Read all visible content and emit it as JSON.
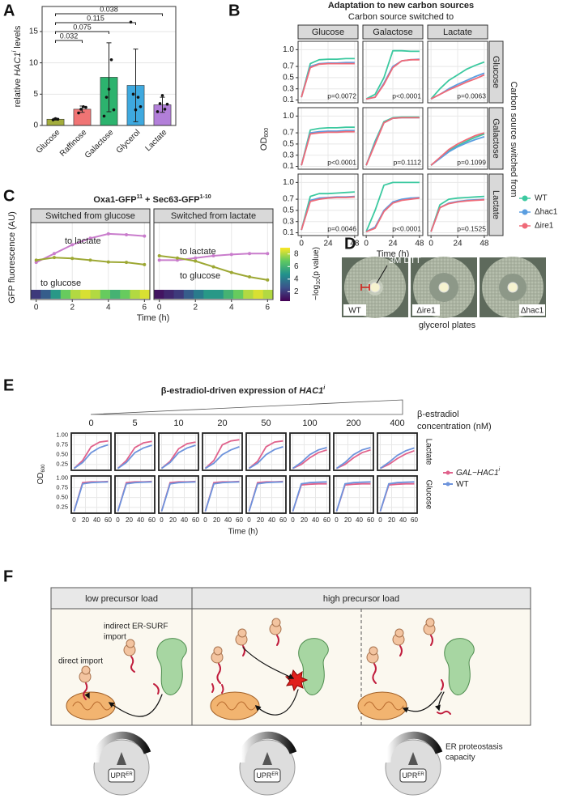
{
  "panel_a": {
    "label": "A",
    "chart_data": {
      "type": "bar",
      "ylabel_pre": "relative ",
      "ylabel_gene": "HAC1",
      "ylabel_sup": "i",
      "ylabel_post": " levels",
      "categories": [
        "Glucose",
        "Raffinose",
        "Galactose",
        "Glycerol",
        "Lactate"
      ],
      "values": [
        1.0,
        2.6,
        7.7,
        6.4,
        3.3
      ],
      "errors": [
        0.15,
        0.5,
        5.5,
        5.8,
        1.2
      ],
      "points": [
        [
          0.9,
          1.1,
          1.0
        ],
        [
          2.0,
          2.6,
          3.0,
          2.9
        ],
        [
          1.5,
          4.5,
          5.8,
          10.5,
          2.5
        ],
        [
          16.5,
          5.0,
          2.5,
          4.5,
          3.0
        ],
        [
          2.2,
          3.5,
          4.8,
          2.6,
          3.4
        ]
      ],
      "colors": [
        "#a3ad3c",
        "#f07474",
        "#2cb36e",
        "#3ea9df",
        "#b27fd9"
      ],
      "ylim": [
        0,
        19
      ],
      "yticks": [
        0,
        5,
        10,
        15
      ],
      "grid": true,
      "comparisons": [
        {
          "groups": [
            "Glucose",
            "Raffinose"
          ],
          "label": "0.032"
        },
        {
          "groups": [
            "Glucose",
            "Galactose"
          ],
          "label": "0.075"
        },
        {
          "groups": [
            "Glucose",
            "Glycerol"
          ],
          "label": "0.115"
        },
        {
          "groups": [
            "Glucose",
            "Lactate"
          ],
          "label": "0.038"
        }
      ]
    }
  },
  "panel_b": {
    "label": "B",
    "chart_data": {
      "type": "line",
      "title": "Adaptation to new carbon sources",
      "subtitle": "Carbon source switched to",
      "right_label": "Carbon source switched from",
      "ylabel": "OD",
      "ylabel_sub": "600",
      "xlabel": "Time (h)",
      "columns": [
        "Glucose",
        "Galactose",
        "Lactate"
      ],
      "rows": [
        "Glucose",
        "Galactose",
        "Lactate"
      ],
      "x": [
        0,
        8,
        16,
        24,
        32,
        40,
        48
      ],
      "xlim": [
        -3,
        51
      ],
      "xticks": [
        0,
        24,
        48
      ],
      "ylim": [
        0.05,
        1.15
      ],
      "yticks": [
        0.1,
        0.3,
        0.5,
        0.7,
        {
          "value": 1,
          "label": "1.0"
        }
      ],
      "grid": true,
      "legend": [
        {
          "name": "WT",
          "color": "#3cc9a0"
        },
        {
          "name": "Δhac1",
          "color": "#5b9ee0"
        },
        {
          "name": "Δire1",
          "color": "#ef6a78"
        }
      ],
      "facets": [
        {
          "p_label": "p=0.0072",
          "series": [
            [
              0.15,
              0.75,
              0.82,
              0.83,
              0.83,
              0.84,
              0.84
            ],
            [
              0.15,
              0.7,
              0.75,
              0.76,
              0.76,
              0.77,
              0.77
            ],
            [
              0.15,
              0.68,
              0.74,
              0.75,
              0.75,
              0.75,
              0.75
            ]
          ]
        },
        {
          "p_label": "p<0.0001",
          "series": [
            [
              0.12,
              0.2,
              0.5,
              0.98,
              0.98,
              0.97,
              0.97
            ],
            [
              0.12,
              0.15,
              0.4,
              0.7,
              0.8,
              0.82,
              0.83
            ],
            [
              0.12,
              0.15,
              0.38,
              0.68,
              0.8,
              0.82,
              0.82
            ]
          ]
        },
        {
          "p_label": "p=0.0063",
          "series": [
            [
              0.12,
              0.3,
              0.45,
              0.55,
              0.65,
              0.72,
              0.78
            ],
            [
              0.12,
              0.2,
              0.3,
              0.38,
              0.45,
              0.52,
              0.58
            ],
            [
              0.12,
              0.2,
              0.28,
              0.35,
              0.42,
              0.48,
              0.55
            ]
          ]
        },
        {
          "p_label": "p<0.0001",
          "series": [
            [
              0.12,
              0.75,
              0.78,
              0.79,
              0.79,
              0.8,
              0.8
            ],
            [
              0.12,
              0.7,
              0.72,
              0.73,
              0.73,
              0.74,
              0.74
            ],
            [
              0.12,
              0.68,
              0.7,
              0.71,
              0.71,
              0.72,
              0.72
            ]
          ]
        },
        {
          "p_label": "p=0.1112",
          "series": [
            [
              0.12,
              0.55,
              0.9,
              0.97,
              0.98,
              0.98,
              0.98
            ],
            [
              0.12,
              0.52,
              0.88,
              0.96,
              0.97,
              0.97,
              0.97
            ],
            [
              0.12,
              0.5,
              0.88,
              0.96,
              0.97,
              0.97,
              0.97
            ]
          ]
        },
        {
          "p_label": "p=0.1099",
          "series": [
            [
              0.12,
              0.25,
              0.38,
              0.47,
              0.55,
              0.62,
              0.68
            ],
            [
              0.12,
              0.24,
              0.36,
              0.45,
              0.52,
              0.58,
              0.63
            ],
            [
              0.12,
              0.26,
              0.4,
              0.5,
              0.58,
              0.65,
              0.7
            ]
          ]
        },
        {
          "p_label": "p=0.0046",
          "series": [
            [
              0.15,
              0.75,
              0.8,
              0.8,
              0.81,
              0.82,
              0.83
            ],
            [
              0.15,
              0.68,
              0.72,
              0.73,
              0.74,
              0.74,
              0.75
            ],
            [
              0.15,
              0.66,
              0.7,
              0.72,
              0.73,
              0.73,
              0.74
            ]
          ]
        },
        {
          "p_label": "p<0.0001",
          "series": [
            [
              0.12,
              0.5,
              0.95,
              1.0,
              1.0,
              1.0,
              1.0
            ],
            [
              0.12,
              0.2,
              0.5,
              0.65,
              0.7,
              0.72,
              0.73
            ],
            [
              0.12,
              0.18,
              0.48,
              0.63,
              0.68,
              0.7,
              0.72
            ]
          ]
        },
        {
          "p_label": "p=0.1525",
          "series": [
            [
              0.12,
              0.6,
              0.7,
              0.72,
              0.73,
              0.74,
              0.75
            ],
            [
              0.12,
              0.55,
              0.63,
              0.66,
              0.68,
              0.69,
              0.7
            ],
            [
              0.12,
              0.55,
              0.62,
              0.65,
              0.67,
              0.68,
              0.69
            ]
          ]
        }
      ]
    }
  },
  "panel_c": {
    "label": "C",
    "chart_data": {
      "type": "line",
      "title_pre": "Oxa1-GFP",
      "title_sup1": "11",
      "title_mid": " + Sec63-GFP",
      "title_sup2": "1-10",
      "ylabel": "GFP fluorescence (AU)",
      "xlabel": "Time (h)",
      "x": [
        0,
        1,
        2,
        3,
        4,
        5,
        6
      ],
      "xlim": [
        -0.3,
        6.3
      ],
      "xticks": [
        0,
        2,
        4,
        6
      ],
      "ylim": [
        -5,
        9
      ],
      "grid": true,
      "series_colors": [
        "#c97ccc",
        "#9da834"
      ],
      "colorbar": {
        "title_pre": "−log",
        "title_sub": "10",
        "title_post": "(p value)",
        "lim": [
          0.5,
          9
        ],
        "ticks": [
          2,
          4,
          6,
          8
        ]
      },
      "facets": [
        {
          "title": "Switched from glucose",
          "labels": [
            "to lactate",
            "to glucose"
          ],
          "series": [
            [
              0.5,
              2.5,
              4.5,
              6,
              7,
              6.8,
              6.5
            ],
            [
              1,
              1.6,
              1.4,
              1,
              0.6,
              0.5,
              0
            ]
          ],
          "pvalues": [
            2,
            3,
            5,
            7,
            8,
            8.5,
            8,
            7,
            6,
            7,
            8,
            8.5
          ]
        },
        {
          "title": "Switched from lactate",
          "labels": [
            "to lactate",
            "to glucose"
          ],
          "series": [
            [
              1,
              1,
              1.5,
              2,
              2.3,
              2.5,
              2.5
            ],
            [
              2,
              1.5,
              0.8,
              -0.5,
              -1.8,
              -2.8,
              -3.5
            ]
          ],
          "pvalues": [
            1,
            1.5,
            2,
            3,
            4,
            5,
            5,
            6,
            7,
            8,
            8.5,
            8
          ]
        }
      ]
    }
  },
  "panel_d": {
    "label": "D",
    "drug": "3M DTT",
    "plates": [
      "WT",
      "Δire1",
      "Δhac1"
    ],
    "caption": "glycerol plates"
  },
  "panel_e": {
    "label": "E",
    "chart_data": {
      "type": "line",
      "title_pre": "β-estradiol-driven expression of ",
      "title_gene": "HAC1",
      "title_sup": "i",
      "conc_label": [
        "β-estradiol",
        "concentration (nM)"
      ],
      "concentrations": [
        0,
        5,
        10,
        20,
        50,
        100,
        200,
        400
      ],
      "rows": [
        "Lactate",
        "Glucose"
      ],
      "ylabel": "OD",
      "ylabel_sub": "600",
      "xlabel": "Time (h)",
      "x": [
        0,
        15,
        30,
        45,
        60
      ],
      "xlim": [
        -5,
        65
      ],
      "xticks": [
        0,
        20,
        40,
        60
      ],
      "ylim": [
        0.1,
        1.05
      ],
      "yticks": [
        0.25,
        {
          "value": 0.5,
          "label": "0.50"
        },
        0.75,
        {
          "value": 1,
          "label": "1.00"
        }
      ],
      "legend": [
        {
          "name": "GAL−HAC1",
          "name_sup": "i",
          "color": "#e0628c"
        },
        {
          "name": "WT",
          "color": "#6d93dc"
        }
      ],
      "facets": [
        [
          [
            [
              0.15,
              0.35,
              0.7,
              0.82,
              0.85
            ],
            [
              0.15,
              0.3,
              0.55,
              0.68,
              0.75
            ]
          ],
          [
            [
              0.15,
              0.35,
              0.68,
              0.8,
              0.84
            ],
            [
              0.15,
              0.3,
              0.55,
              0.67,
              0.74
            ]
          ],
          [
            [
              0.15,
              0.33,
              0.65,
              0.78,
              0.82
            ],
            [
              0.15,
              0.3,
              0.55,
              0.67,
              0.74
            ]
          ],
          [
            [
              0.15,
              0.35,
              0.75,
              0.85,
              0.88
            ],
            [
              0.15,
              0.28,
              0.5,
              0.62,
              0.7
            ]
          ],
          [
            [
              0.15,
              0.33,
              0.7,
              0.82,
              0.85
            ],
            [
              0.15,
              0.28,
              0.5,
              0.63,
              0.7
            ]
          ],
          [
            [
              0.15,
              0.25,
              0.42,
              0.55,
              0.62
            ],
            [
              0.15,
              0.3,
              0.5,
              0.62,
              0.68
            ]
          ],
          [
            [
              0.15,
              0.25,
              0.42,
              0.55,
              0.62
            ],
            [
              0.15,
              0.3,
              0.5,
              0.62,
              0.68
            ]
          ],
          [
            [
              0.15,
              0.25,
              0.4,
              0.52,
              0.6
            ],
            [
              0.15,
              0.3,
              0.48,
              0.6,
              0.67
            ]
          ]
        ],
        [
          [
            [
              0.15,
              0.88,
              0.9,
              0.9,
              0.91
            ],
            [
              0.15,
              0.85,
              0.88,
              0.89,
              0.9
            ]
          ],
          [
            [
              0.15,
              0.88,
              0.9,
              0.9,
              0.91
            ],
            [
              0.15,
              0.85,
              0.88,
              0.89,
              0.9
            ]
          ],
          [
            [
              0.15,
              0.88,
              0.9,
              0.9,
              0.91
            ],
            [
              0.15,
              0.85,
              0.88,
              0.89,
              0.9
            ]
          ],
          [
            [
              0.15,
              0.88,
              0.9,
              0.9,
              0.91
            ],
            [
              0.15,
              0.85,
              0.88,
              0.89,
              0.9
            ]
          ],
          [
            [
              0.15,
              0.88,
              0.9,
              0.9,
              0.91
            ],
            [
              0.15,
              0.85,
              0.88,
              0.89,
              0.9
            ]
          ],
          [
            [
              0.15,
              0.82,
              0.84,
              0.85,
              0.85
            ],
            [
              0.15,
              0.85,
              0.88,
              0.89,
              0.9
            ]
          ],
          [
            [
              0.15,
              0.82,
              0.84,
              0.85,
              0.85
            ],
            [
              0.15,
              0.85,
              0.88,
              0.89,
              0.9
            ]
          ],
          [
            [
              0.15,
              0.82,
              0.84,
              0.85,
              0.85
            ],
            [
              0.15,
              0.85,
              0.88,
              0.89,
              0.9
            ]
          ]
        ]
      ]
    }
  },
  "panel_f": {
    "label": "F",
    "header": [
      "low precursor load",
      "high precursor load"
    ],
    "indirect_import": [
      "indirect ER-SURF",
      "import"
    ],
    "direct_import": "direct import",
    "capacity": [
      "ER proteostasis",
      "capacity"
    ],
    "upr": [
      "UPR",
      "ER"
    ]
  }
}
